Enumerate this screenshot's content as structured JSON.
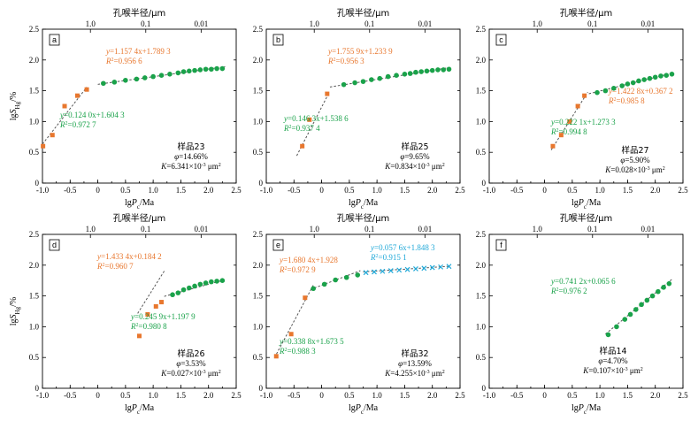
{
  "colors": {
    "orange": "#e8772e",
    "green": "#1aa24a",
    "cyan": "#1fa8d8",
    "axis": "#000000",
    "fit": "#555555"
  },
  "labels": {
    "ylabel_prefix": "lg",
    "ylabel_var": "S",
    "ylabel_sub": "Hg",
    "ylabel_unit": "/%",
    "xlabel_prefix": "lg",
    "xlabel_var": "P",
    "xlabel_sub": "c",
    "xlabel_unit": "/Ma",
    "top_title": "孔喉半径/μm"
  },
  "chart_data": [
    {
      "type": "scatter",
      "panel": "a",
      "xlim": [
        -1.0,
        2.5
      ],
      "ylim": [
        0,
        2.5
      ],
      "xticks": [
        "-1.0",
        "-0.5",
        "0",
        "0.5",
        "1.0",
        "1.5",
        "2.0",
        "2.5"
      ],
      "yticks": [
        "0",
        "0.5",
        "1.0",
        "1.5",
        "2.0",
        "2.5"
      ],
      "top_ticks": [
        {
          "value": 1.0,
          "label": "1.0"
        },
        {
          "value": 0.1,
          "label": "0.1"
        },
        {
          "value": 0.01,
          "label": "0.01"
        }
      ],
      "series": [
        {
          "color": "orange",
          "marker": "square",
          "x": [
            -0.99,
            -0.82,
            -0.6,
            -0.37,
            -0.2
          ],
          "y": [
            0.6,
            0.78,
            1.25,
            1.42,
            1.52
          ],
          "fit": {
            "slope": 1.1574,
            "intercept": 1.7893,
            "x": [
              -1.0,
              -0.2
            ]
          },
          "eq": "y=1.157 4x+1.789 3",
          "r2_value": "=0.956 6"
        },
        {
          "color": "green",
          "marker": "circle",
          "x": [
            0.1,
            0.3,
            0.5,
            0.7,
            0.85,
            1.0,
            1.15,
            1.3,
            1.45,
            1.55,
            1.65,
            1.75,
            1.85,
            1.95,
            2.05,
            2.15,
            2.25
          ],
          "y": [
            1.62,
            1.64,
            1.67,
            1.69,
            1.71,
            1.73,
            1.75,
            1.77,
            1.79,
            1.81,
            1.82,
            1.83,
            1.84,
            1.85,
            1.85,
            1.86,
            1.86
          ],
          "fit": {
            "slope": 0.124,
            "intercept": 1.6043,
            "x": [
              0.0,
              2.3
            ]
          },
          "eq": "y=0.124 0x+1.604 3",
          "r2_value": "=0.972 7"
        }
      ],
      "sample": {
        "name": "样品23",
        "phi": "=14.66%",
        "k": "=6.341×10",
        "k_exp": "-3",
        "k_unit": "μm",
        "k_unit_exp": "2"
      }
    },
    {
      "type": "scatter",
      "panel": "b",
      "xlim": [
        -1.0,
        2.5
      ],
      "ylim": [
        0,
        2.5
      ],
      "xticks": [
        "-1.0",
        "-0.5",
        "0",
        "0.5",
        "1.0",
        "1.5",
        "2.0",
        "2.5"
      ],
      "yticks": [
        "0",
        "0.5",
        "1.0",
        "1.5",
        "2.0",
        "2.5"
      ],
      "top_ticks": [
        {
          "value": 1.0,
          "label": "1.0"
        },
        {
          "value": 0.1,
          "label": "0.1"
        },
        {
          "value": 0.01,
          "label": "0.01"
        }
      ],
      "series": [
        {
          "color": "orange",
          "marker": "square",
          "x": [
            -0.35,
            -0.22,
            0.1
          ],
          "y": [
            0.6,
            1.03,
            1.45
          ],
          "fit": {
            "slope": 1.7559,
            "intercept": 1.2339,
            "x": [
              -0.45,
              0.12
            ]
          },
          "eq": "y=1.755 9x+1.233 9",
          "r2_value": "=0.956 3"
        },
        {
          "color": "green",
          "marker": "circle",
          "x": [
            0.4,
            0.6,
            0.75,
            0.9,
            1.05,
            1.2,
            1.35,
            1.5,
            1.6,
            1.7,
            1.8,
            1.9,
            2.0,
            2.1,
            2.2,
            2.3
          ],
          "y": [
            1.6,
            1.63,
            1.65,
            1.68,
            1.7,
            1.73,
            1.75,
            1.77,
            1.78,
            1.8,
            1.81,
            1.82,
            1.83,
            1.84,
            1.84,
            1.85
          ],
          "fit": {
            "slope": 0.1463,
            "intercept": 1.5386,
            "x": [
              0.15,
              2.3
            ]
          },
          "eq": "y=0.146 3x+1.538 6",
          "r2_value": "=0.937 4"
        }
      ],
      "sample": {
        "name": "样品25",
        "phi": "=9.65%",
        "k": "=0.834×10",
        "k_exp": "-3",
        "k_unit": "μm",
        "k_unit_exp": "2"
      }
    },
    {
      "type": "scatter",
      "panel": "c",
      "xlim": [
        -1.0,
        2.5
      ],
      "ylim": [
        0,
        2.5
      ],
      "xticks": [
        "-1.0",
        "-0.5",
        "0",
        "0.5",
        "1.0",
        "1.5",
        "2.0",
        "2.5"
      ],
      "yticks": [
        "0",
        "0.5",
        "1.0",
        "1.5",
        "2.0",
        "2.5"
      ],
      "top_ticks": [
        {
          "value": 1.0,
          "label": "1.0"
        },
        {
          "value": 0.1,
          "label": "0.1"
        },
        {
          "value": 0.01,
          "label": "0.01"
        }
      ],
      "series": [
        {
          "color": "orange",
          "marker": "square",
          "x": [
            0.15,
            0.3,
            0.45,
            0.6,
            0.72
          ],
          "y": [
            0.6,
            0.78,
            1.0,
            1.25,
            1.42
          ],
          "fit": {
            "slope": 1.4228,
            "intercept": 0.3672,
            "x": [
              0.12,
              0.78
            ]
          },
          "eq": "y=1.422 8x+0.367 2",
          "r2_value": "=0.985 8"
        },
        {
          "color": "green",
          "marker": "circle",
          "x": [
            0.95,
            1.1,
            1.25,
            1.4,
            1.5,
            1.6,
            1.7,
            1.8,
            1.9,
            2.0,
            2.1,
            2.2,
            2.3
          ],
          "y": [
            1.47,
            1.5,
            1.54,
            1.58,
            1.61,
            1.63,
            1.66,
            1.68,
            1.7,
            1.72,
            1.74,
            1.75,
            1.77
          ],
          "fit": {
            "slope": 0.2221,
            "intercept": 1.2733,
            "x": [
              0.8,
              2.3
            ]
          },
          "eq": "y=0.222 1x+1.273 3",
          "r2_value": "=0.994 8"
        }
      ],
      "sample": {
        "name": "样品27",
        "phi": "=5.90%",
        "k": "=0.028×10",
        "k_exp": "-3",
        "k_unit": "μm",
        "k_unit_exp": "2"
      }
    },
    {
      "type": "scatter",
      "panel": "d",
      "xlim": [
        -1.0,
        2.5
      ],
      "ylim": [
        0,
        2.5
      ],
      "xticks": [
        "-1.0",
        "-0.5",
        "0",
        "0.5",
        "1.0",
        "1.5",
        "2.0",
        "2.5"
      ],
      "yticks": [
        "0",
        "0.5",
        "1.0",
        "1.5",
        "2.0",
        "2.5"
      ],
      "top_ticks": [
        {
          "value": 1.0,
          "label": "1.0"
        },
        {
          "value": 0.1,
          "label": "0.1"
        },
        {
          "value": 0.01,
          "label": "0.01"
        }
      ],
      "series": [
        {
          "color": "orange",
          "marker": "square",
          "x": [
            0.75,
            0.9,
            1.05,
            1.15
          ],
          "y": [
            0.85,
            1.2,
            1.33,
            1.4
          ],
          "fit": {
            "slope": 1.4334,
            "intercept": 0.1842,
            "x": [
              0.72,
              1.2
            ]
          },
          "eq": "y=1.433 4x+0.184 2",
          "r2_value": "=0.960 7"
        },
        {
          "color": "green",
          "marker": "circle",
          "x": [
            1.35,
            1.45,
            1.55,
            1.65,
            1.75,
            1.85,
            1.95,
            2.05,
            2.15,
            2.25
          ],
          "y": [
            1.52,
            1.55,
            1.6,
            1.63,
            1.66,
            1.69,
            1.71,
            1.73,
            1.74,
            1.75
          ],
          "fit": {
            "slope": 0.2459,
            "intercept": 1.1979,
            "x": [
              1.2,
              2.3
            ]
          },
          "eq": "y=0.245 9x+1.197 9",
          "r2_value": "=0.980 8"
        }
      ],
      "sample": {
        "name": "样品26",
        "phi": "=3.53%",
        "k": "=0.027×10",
        "k_exp": "-3",
        "k_unit": "μm",
        "k_unit_exp": "2"
      }
    },
    {
      "type": "scatter",
      "panel": "e",
      "xlim": [
        -1.0,
        2.5
      ],
      "ylim": [
        0,
        2.5
      ],
      "xticks": [
        "-1.0",
        "-0.5",
        "0",
        "0.5",
        "1.0",
        "1.5",
        "2.0",
        "2.5"
      ],
      "yticks": [
        "0",
        "0.5",
        "1.0",
        "1.5",
        "2.0",
        "2.5"
      ],
      "top_ticks": [
        {
          "value": 1.0,
          "label": "1.0"
        },
        {
          "value": 0.1,
          "label": "0.1"
        },
        {
          "value": 0.01,
          "label": "0.01"
        }
      ],
      "series": [
        {
          "color": "orange",
          "marker": "square",
          "x": [
            -0.82,
            -0.55,
            -0.3
          ],
          "y": [
            0.52,
            0.88,
            1.47
          ],
          "fit": {
            "slope": 1.6804,
            "intercept": 1.928,
            "x": [
              -0.85,
              -0.15
            ]
          },
          "eq": "y=1.680 4x+1.928",
          "r2_value": "=0.972 9"
        },
        {
          "color": "green",
          "marker": "circle",
          "x": [
            -0.15,
            0.05,
            0.25,
            0.45,
            0.65
          ],
          "y": [
            1.62,
            1.69,
            1.76,
            1.8,
            1.84
          ],
          "fit": {
            "slope": 0.3388,
            "intercept": 1.6735,
            "x": [
              -0.2,
              0.7
            ]
          },
          "eq": "y=0.338 8x+1.673 5",
          "r2_value": "=0.988 3"
        },
        {
          "color": "cyan",
          "marker": "cross",
          "x": [
            0.8,
            0.95,
            1.1,
            1.25,
            1.4,
            1.55,
            1.7,
            1.85,
            2.0,
            2.15,
            2.3
          ],
          "y": [
            1.88,
            1.89,
            1.9,
            1.91,
            1.92,
            1.93,
            1.94,
            1.95,
            1.96,
            1.97,
            1.98
          ],
          "fit": {
            "slope": 0.0576,
            "intercept": 1.8483,
            "x": [
              0.75,
              2.3
            ]
          },
          "eq": "y=0.057 6x+1.848 3",
          "r2_value": "=0.915 1"
        }
      ],
      "sample": {
        "name": "样品32",
        "phi": "=13.59%",
        "k": "=4.255×10",
        "k_exp": "-3",
        "k_unit": "μm",
        "k_unit_exp": "2"
      }
    },
    {
      "type": "scatter",
      "panel": "f",
      "xlim": [
        -1.0,
        2.5
      ],
      "ylim": [
        0,
        2.5
      ],
      "xticks": [
        "-1.0",
        "-0.5",
        "0",
        "0.5",
        "1.0",
        "1.5",
        "2.0",
        "2.5"
      ],
      "yticks": [
        "0",
        "0.5",
        "1.0",
        "1.5",
        "2.0",
        "2.5"
      ],
      "top_ticks": [
        {
          "value": 1.0,
          "label": "1.0"
        },
        {
          "value": 0.1,
          "label": "0.1"
        },
        {
          "value": 0.01,
          "label": "0.01"
        }
      ],
      "series": [
        {
          "color": "green",
          "marker": "circle",
          "x": [
            1.15,
            1.3,
            1.45,
            1.55,
            1.65,
            1.75,
            1.85,
            1.95,
            2.05,
            2.15,
            2.25
          ],
          "y": [
            0.87,
            1.0,
            1.12,
            1.2,
            1.28,
            1.36,
            1.43,
            1.5,
            1.57,
            1.64,
            1.7
          ],
          "fit": {
            "slope": 0.7412,
            "intercept": 0.0656,
            "x": [
              1.1,
              2.3
            ]
          },
          "eq": "y=0.741 2x+0.065 6",
          "r2_value": "=0.976 2"
        }
      ],
      "sample": {
        "name": "样品14",
        "phi": "=4.70%",
        "k": "=0.107×10",
        "k_exp": "-3",
        "k_unit": "μm",
        "k_unit_exp": "2"
      }
    }
  ]
}
